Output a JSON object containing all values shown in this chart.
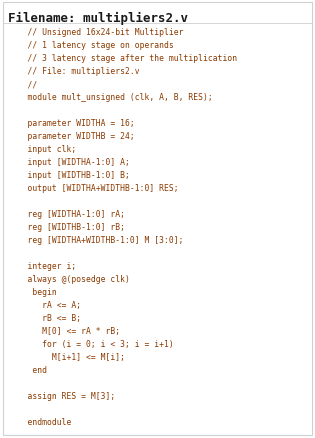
{
  "filename_label": "Filename: multipliers2.v",
  "background_color": "#ffffff",
  "border_color": "#d0d0d0",
  "title_color": "#1a1a1a",
  "code_color": "#8B3A00",
  "figsize": [
    3.15,
    4.39
  ],
  "dpi": 100,
  "code_lines": [
    "    // Unsigned 16x24-bit Multiplier",
    "    // 1 latency stage on operands",
    "    // 3 latency stage after the multiplication",
    "    // File: multipliers2.v",
    "    //",
    "    module mult_unsigned (clk, A, B, RES);",
    "",
    "    parameter WIDTHA = 16;",
    "    parameter WIDTHB = 24;",
    "    input clk;",
    "    input [WIDTHA-1:0] A;",
    "    input [WIDTHB-1:0] B;",
    "    output [WIDTHA+WIDTHB-1:0] RES;",
    "",
    "    reg [WIDTHA-1:0] rA;",
    "    reg [WIDTHB-1:0] rB;",
    "    reg [WIDTHA+WIDTHB-1:0] M [3:0];",
    "",
    "    integer i;",
    "    always @(posedge clk)",
    "     begin",
    "       rA <= A;",
    "       rB <= B;",
    "       M[0] <= rA * rB;",
    "       for (i = 0; i < 3; i = i+1)",
    "         M[i+1] <= M[i];",
    "     end",
    "",
    "    assign RES = M[3];",
    "",
    "    endmodule"
  ],
  "title_fontsize": 9.0,
  "code_fontsize": 5.8
}
